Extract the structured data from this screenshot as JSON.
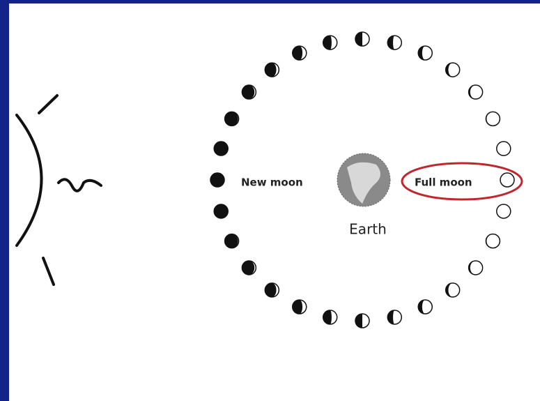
{
  "labels": {
    "new_moon": "New moon",
    "full_moon": "Full moon",
    "earth": "Earth"
  }
}
